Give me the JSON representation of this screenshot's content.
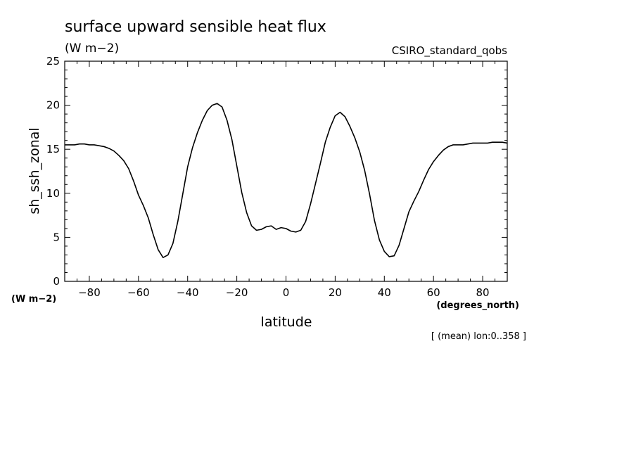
{
  "chart_data": {
    "type": "line",
    "title": "surface upward sensible heat flux",
    "title_units": "(W m−2)",
    "dataset": "CSIRO_standard_qobs",
    "xlabel": "latitude",
    "x_units": "(degrees_north)",
    "ylabel": "sh_ssh_zonal",
    "y_units": "(W m−2)",
    "footnote": "[ (mean) lon:0..358 ]",
    "xlim": [
      -90,
      90
    ],
    "ylim": [
      0,
      25
    ],
    "x_ticks": [
      -80,
      -60,
      -40,
      -20,
      0,
      20,
      40,
      60,
      80
    ],
    "x_tick_labels": [
      "−80",
      "−60",
      "−40",
      "−20",
      "0",
      "20",
      "40",
      "60",
      "80"
    ],
    "y_ticks": [
      0,
      5,
      10,
      15,
      20,
      25
    ],
    "y_tick_labels": [
      "0",
      "5",
      "10",
      "15",
      "20",
      "25"
    ],
    "grid": false,
    "series": [
      {
        "color": "#000000",
        "x": [
          -90,
          -86,
          -84,
          -82,
          -80,
          -78,
          -76,
          -74,
          -72,
          -70,
          -68,
          -66,
          -64,
          -62,
          -60,
          -58,
          -56,
          -54,
          -52,
          -50,
          -48,
          -46,
          -44,
          -42,
          -40,
          -38,
          -36,
          -34,
          -32,
          -30,
          -28,
          -26,
          -24,
          -22,
          -20,
          -18,
          -16,
          -14,
          -12,
          -10,
          -8,
          -6,
          -4,
          -2,
          0,
          2,
          4,
          6,
          8,
          10,
          12,
          14,
          16,
          18,
          20,
          22,
          24,
          26,
          28,
          30,
          32,
          34,
          36,
          38,
          40,
          42,
          44,
          46,
          48,
          50,
          52,
          54,
          56,
          58,
          60,
          62,
          64,
          66,
          68,
          70,
          72,
          74,
          76,
          78,
          80,
          82,
          84,
          86,
          88,
          90
        ],
        "y": [
          15.5,
          15.5,
          15.6,
          15.6,
          15.5,
          15.5,
          15.4,
          15.3,
          15.1,
          14.8,
          14.3,
          13.7,
          12.8,
          11.4,
          9.8,
          8.6,
          7.2,
          5.3,
          3.6,
          2.7,
          3.0,
          4.3,
          6.8,
          9.9,
          13.0,
          15.2,
          16.9,
          18.3,
          19.4,
          20.0,
          20.2,
          19.8,
          18.3,
          16.1,
          13.1,
          10.1,
          7.8,
          6.3,
          5.8,
          5.9,
          6.2,
          6.3,
          5.9,
          6.1,
          6.0,
          5.7,
          5.6,
          5.8,
          6.8,
          8.8,
          11.1,
          13.4,
          15.8,
          17.5,
          18.8,
          19.2,
          18.7,
          17.6,
          16.3,
          14.7,
          12.6,
          9.9,
          6.9,
          4.7,
          3.4,
          2.8,
          2.9,
          4.1,
          6.0,
          7.9,
          9.1,
          10.2,
          11.5,
          12.7,
          13.6,
          14.3,
          14.9,
          15.3,
          15.5,
          15.5,
          15.5,
          15.6,
          15.7,
          15.7,
          15.7,
          15.7,
          15.8,
          15.8,
          15.8,
          15.7
        ]
      }
    ]
  }
}
